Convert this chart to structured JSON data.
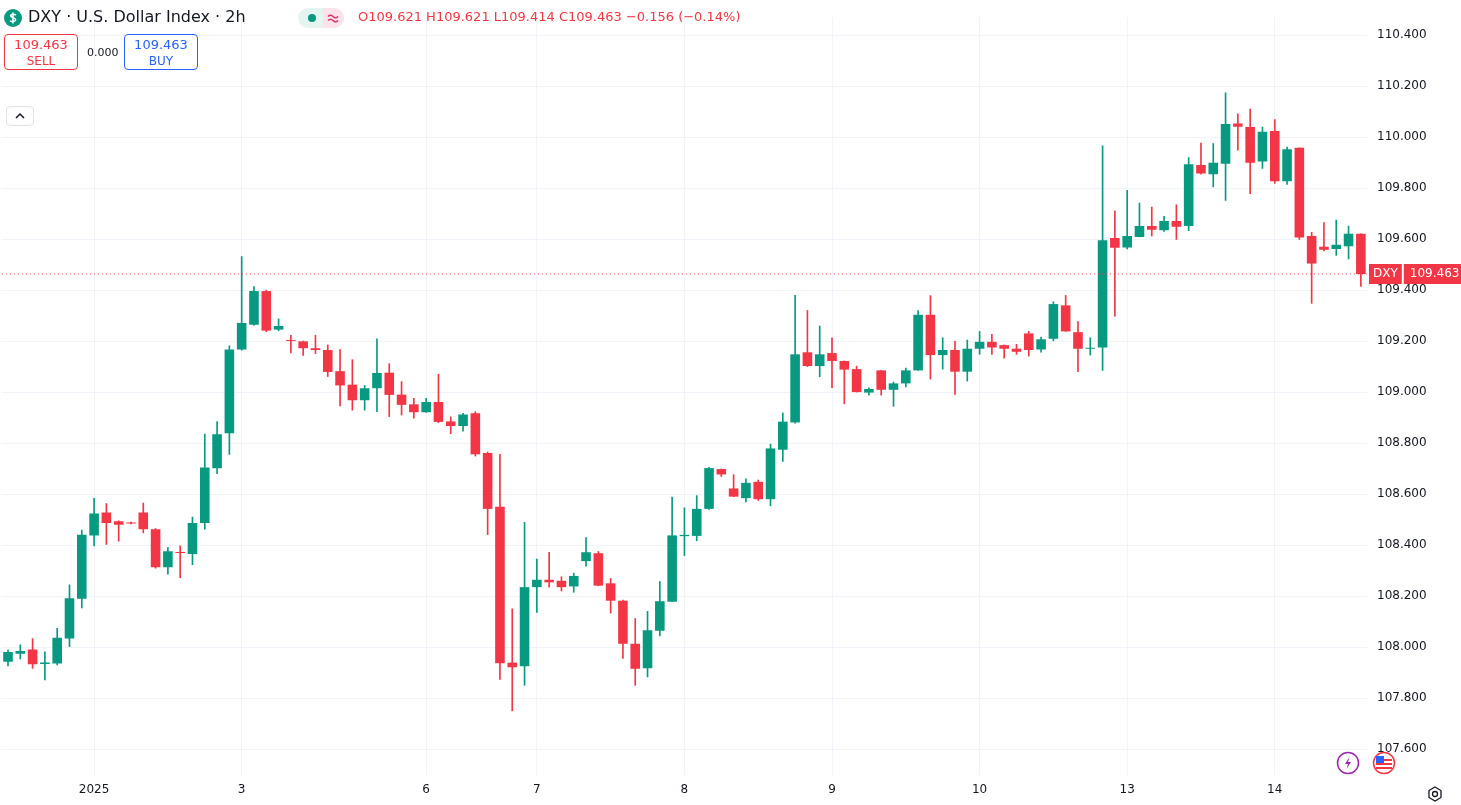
{
  "chart_data": {
    "type": "candlestick",
    "title": "DXY · U.S. Dollar Index · 2h",
    "annotations": [
      "O109.621 H109.621 L109.414 C109.463 −0.156 (−0.14%)",
      "109.463",
      "SELL",
      "0.000",
      "109.463",
      "BUY"
    ],
    "categories": [
      null,
      null,
      null,
      null,
      null,
      null,
      null,
      "2025",
      null,
      null,
      null,
      null,
      null,
      null,
      null,
      null,
      null,
      null,
      null,
      "3",
      null,
      null,
      null,
      null,
      null,
      null,
      null,
      null,
      null,
      null,
      null,
      null,
      null,
      null,
      "6",
      null,
      null,
      null,
      null,
      null,
      null,
      null,
      null,
      "7",
      null,
      null,
      null,
      null,
      null,
      null,
      null,
      null,
      null,
      null,
      null,
      "8",
      null,
      null,
      null,
      null,
      null,
      null,
      null,
      null,
      null,
      null,
      null,
      "9",
      null,
      null,
      null,
      null,
      null,
      null,
      null,
      null,
      null,
      null,
      null,
      "10",
      null,
      null,
      null,
      null,
      null,
      null,
      null,
      null,
      null,
      null,
      null,
      "13",
      null,
      null,
      null,
      null,
      null,
      null,
      null,
      null,
      null,
      null,
      null,
      "14",
      null,
      null,
      null,
      null,
      null,
      null,
      null
    ],
    "ohlc": [
      [
        107.943,
        107.988,
        107.926,
        107.981
      ],
      [
        107.974,
        108.009,
        107.954,
        107.985
      ],
      [
        107.991,
        108.033,
        107.916,
        107.933
      ],
      [
        107.934,
        107.981,
        107.871,
        107.94
      ],
      [
        107.936,
        108.074,
        107.93,
        108.037
      ],
      [
        108.034,
        108.244,
        108.002,
        108.192
      ],
      [
        108.19,
        108.459,
        108.154,
        108.441
      ],
      [
        108.438,
        108.583,
        108.397,
        108.524
      ],
      [
        108.528,
        108.563,
        108.403,
        108.487
      ],
      [
        108.493,
        108.495,
        108.415,
        108.48
      ],
      [
        108.487,
        108.49,
        108.483,
        108.485
      ],
      [
        108.528,
        108.565,
        108.448,
        108.462
      ],
      [
        108.462,
        108.465,
        108.309,
        108.313
      ],
      [
        108.313,
        108.39,
        108.286,
        108.376
      ],
      [
        108.373,
        108.397,
        108.272,
        108.369
      ],
      [
        108.365,
        108.51,
        108.323,
        108.487
      ],
      [
        108.487,
        108.835,
        108.462,
        108.704
      ],
      [
        108.701,
        108.884,
        108.68,
        108.835
      ],
      [
        108.839,
        109.181,
        108.756,
        109.167
      ],
      [
        109.167,
        109.531,
        109.164,
        109.271
      ],
      [
        109.264,
        109.414,
        109.262,
        109.396
      ],
      [
        109.396,
        109.4,
        109.237,
        109.241
      ],
      [
        109.245,
        109.287,
        109.241,
        109.259
      ],
      [
        109.203,
        109.223,
        109.154,
        109.2
      ],
      [
        109.199,
        109.2,
        109.144,
        109.172
      ],
      [
        109.172,
        109.223,
        109.151,
        109.165
      ],
      [
        109.165,
        109.185,
        109.061,
        109.079
      ],
      [
        109.082,
        109.167,
        108.946,
        109.026
      ],
      [
        109.029,
        109.127,
        108.929,
        108.968
      ],
      [
        108.968,
        109.026,
        108.929,
        109.015
      ],
      [
        109.015,
        109.209,
        108.923,
        109.075
      ],
      [
        109.076,
        109.111,
        108.904,
        108.989
      ],
      [
        108.99,
        109.041,
        108.91,
        108.95
      ],
      [
        108.952,
        108.975,
        108.898,
        108.921
      ],
      [
        108.921,
        108.975,
        108.92,
        108.961
      ],
      [
        108.961,
        109.07,
        108.88,
        108.883
      ],
      [
        108.885,
        108.903,
        108.837,
        108.867
      ],
      [
        108.867,
        108.917,
        108.847,
        108.912
      ],
      [
        108.917,
        108.923,
        108.749,
        108.756
      ],
      [
        108.761,
        108.765,
        108.441,
        108.542
      ],
      [
        108.55,
        108.756,
        107.873,
        107.937
      ],
      [
        107.939,
        108.15,
        107.75,
        107.921
      ],
      [
        107.925,
        108.489,
        107.85,
        108.235
      ],
      [
        108.235,
        108.345,
        108.136,
        108.264
      ],
      [
        108.264,
        108.372,
        108.235,
        108.254
      ],
      [
        108.26,
        108.276,
        108.22,
        108.235
      ],
      [
        108.238,
        108.29,
        108.215,
        108.279
      ],
      [
        108.337,
        108.429,
        108.317,
        108.372
      ],
      [
        108.368,
        108.375,
        108.24,
        108.241
      ],
      [
        108.25,
        108.269,
        108.133,
        108.182
      ],
      [
        108.182,
        108.184,
        107.956,
        108.013
      ],
      [
        108.013,
        108.112,
        107.85,
        107.915
      ],
      [
        107.917,
        108.14,
        107.883,
        108.066
      ],
      [
        108.064,
        108.257,
        108.044,
        108.18
      ],
      [
        108.178,
        108.588,
        108.178,
        108.438
      ],
      [
        108.435,
        108.546,
        108.359,
        108.44
      ],
      [
        108.436,
        108.594,
        108.417,
        108.542
      ],
      [
        108.542,
        108.705,
        108.54,
        108.702
      ],
      [
        108.698,
        108.698,
        108.669,
        108.677
      ],
      [
        108.622,
        108.676,
        108.59,
        108.59
      ],
      [
        108.584,
        108.66,
        108.569,
        108.644
      ],
      [
        108.648,
        108.655,
        108.575,
        108.58
      ],
      [
        108.58,
        108.796,
        108.554,
        108.779
      ],
      [
        108.774,
        108.918,
        108.728,
        108.884
      ],
      [
        108.881,
        109.379,
        108.878,
        109.148
      ],
      [
        109.156,
        109.32,
        109.1,
        109.102
      ],
      [
        109.102,
        109.259,
        109.06,
        109.148
      ],
      [
        109.153,
        109.213,
        109.017,
        109.122
      ],
      [
        109.122,
        109.122,
        108.954,
        109.088
      ],
      [
        109.09,
        109.102,
        109.0,
        109.0
      ],
      [
        108.998,
        109.017,
        108.988,
        109.012
      ],
      [
        109.085,
        109.085,
        108.988,
        109.009
      ],
      [
        109.009,
        109.039,
        108.944,
        109.034
      ],
      [
        109.034,
        109.094,
        109.02,
        109.085
      ],
      [
        109.085,
        109.32,
        109.085,
        109.303
      ],
      [
        109.303,
        109.378,
        109.051,
        109.145
      ],
      [
        109.145,
        109.213,
        109.09,
        109.165
      ],
      [
        109.165,
        109.199,
        108.991,
        109.08
      ],
      [
        109.08,
        109.204,
        109.043,
        109.17
      ],
      [
        109.17,
        109.238,
        109.148,
        109.197
      ],
      [
        109.197,
        109.226,
        109.148,
        109.175
      ],
      [
        109.184,
        109.185,
        109.133,
        109.17
      ],
      [
        109.17,
        109.187,
        109.148,
        109.158
      ],
      [
        109.23,
        109.238,
        109.141,
        109.165
      ],
      [
        109.167,
        109.216,
        109.156,
        109.207
      ],
      [
        109.209,
        109.354,
        109.201,
        109.345
      ],
      [
        109.34,
        109.379,
        109.238,
        109.238
      ],
      [
        109.235,
        109.276,
        109.08,
        109.17
      ],
      [
        109.17,
        109.213,
        109.145,
        109.172
      ],
      [
        109.175,
        109.966,
        109.085,
        109.595
      ],
      [
        109.604,
        109.711,
        109.298,
        109.566
      ],
      [
        109.567,
        109.791,
        109.561,
        109.612
      ],
      [
        109.608,
        109.741,
        109.608,
        109.651
      ],
      [
        109.651,
        109.725,
        109.612,
        109.637
      ],
      [
        109.635,
        109.689,
        109.63,
        109.671
      ],
      [
        109.671,
        109.734,
        109.599,
        109.648
      ],
      [
        109.651,
        109.92,
        109.633,
        109.893
      ],
      [
        109.89,
        109.976,
        109.854,
        109.857
      ],
      [
        109.854,
        109.974,
        109.804,
        109.899
      ],
      [
        109.895,
        110.173,
        109.752,
        110.051
      ],
      [
        110.053,
        110.091,
        109.949,
        110.04
      ],
      [
        110.039,
        110.11,
        109.778,
        109.899
      ],
      [
        109.904,
        110.039,
        109.877,
        110.021
      ],
      [
        110.024,
        110.069,
        109.818,
        109.827
      ],
      [
        109.827,
        109.961,
        109.814,
        109.952
      ],
      [
        109.958,
        109.958,
        109.599,
        109.606
      ],
      [
        109.612,
        109.626,
        109.348,
        109.504
      ],
      [
        109.57,
        109.665,
        109.554,
        109.558
      ],
      [
        109.561,
        109.674,
        109.536,
        109.578
      ],
      [
        109.572,
        109.651,
        109.522,
        109.621
      ],
      [
        109.621,
        109.621,
        109.414,
        109.463
      ]
    ],
    "colors": [
      "#089981",
      "#089981",
      "#f23645",
      "#089981",
      "#089981",
      "#089981",
      "#089981",
      "#089981",
      "#f23645",
      "#f23645",
      "#f23645",
      "#f23645",
      "#f23645",
      "#089981",
      "#f23645",
      "#089981",
      "#089981",
      "#089981",
      "#089981",
      "#089981",
      "#089981",
      "#f23645",
      "#089981",
      "#f23645",
      "#f23645",
      "#f23645",
      "#f23645",
      "#f23645",
      "#f23645",
      "#089981",
      "#089981",
      "#f23645",
      "#f23645",
      "#f23645",
      "#089981",
      "#f23645",
      "#f23645",
      "#089981",
      "#f23645",
      "#f23645",
      "#f23645",
      "#f23645",
      "#089981",
      "#089981",
      "#f23645",
      "#f23645",
      "#089981",
      "#089981",
      "#f23645",
      "#f23645",
      "#f23645",
      "#f23645",
      "#089981",
      "#089981",
      "#089981",
      "#089981",
      "#089981",
      "#089981",
      "#f23645",
      "#f23645",
      "#089981",
      "#f23645",
      "#089981",
      "#089981",
      "#089981",
      "#f23645",
      "#089981",
      "#f23645",
      "#f23645",
      "#f23645",
      "#089981",
      "#f23645",
      "#089981",
      "#089981",
      "#089981",
      "#f23645",
      "#089981",
      "#f23645",
      "#089981",
      "#089981",
      "#f23645",
      "#f23645",
      "#f23645",
      "#f23645",
      "#089981",
      "#089981",
      "#f23645",
      "#f23645",
      "#089981",
      "#089981",
      "#f23645",
      "#089981",
      "#089981",
      "#f23645",
      "#089981",
      "#f23645",
      "#089981",
      "#f23645",
      "#089981",
      "#089981",
      "#f23645",
      "#f23645",
      "#089981",
      "#f23645",
      "#089981",
      "#f23645",
      "#f23645",
      "#f23645",
      "#089981",
      "#089981",
      "#f23645"
    ],
    "ylim": [
      107.5,
      110.47
    ],
    "yticks": [
      {
        "value": 107.6,
        "label": "107.600"
      },
      {
        "value": 107.8,
        "label": "107.800"
      },
      {
        "value": 108.0,
        "label": "108.000"
      },
      {
        "value": 108.2,
        "label": "108.200"
      },
      {
        "value": 108.4,
        "label": "108.400"
      },
      {
        "value": 108.6,
        "label": "108.600"
      },
      {
        "value": 108.8,
        "label": "108.800"
      },
      {
        "value": 109.0,
        "label": "109.000"
      },
      {
        "value": 109.2,
        "label": "109.200"
      },
      {
        "value": 109.4,
        "label": "109.400"
      },
      {
        "value": 109.6,
        "label": "109.600"
      },
      {
        "value": 109.8,
        "label": "109.800"
      },
      {
        "value": 110.0,
        "label": "110.000"
      },
      {
        "value": 110.2,
        "label": "110.200"
      },
      {
        "value": 110.4,
        "label": "110.400"
      }
    ],
    "ref_lines": [
      {
        "axis": "y",
        "value": 109.463,
        "label": "DXY",
        "color": "#f23645",
        "line_style": "dotted"
      }
    ],
    "grid": true,
    "legend": false
  }
}
